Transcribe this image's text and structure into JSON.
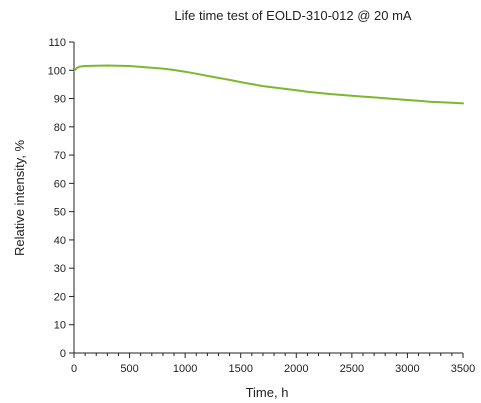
{
  "chart_data": {
    "type": "line",
    "title": "Life time test of EOLD-310-012 @ 20 mA",
    "xlabel": "Time, h",
    "ylabel": "Relative intensity, %",
    "xlim": [
      0,
      3500
    ],
    "ylim": [
      0,
      110
    ],
    "x_ticks": [
      0,
      500,
      1000,
      1500,
      2000,
      2500,
      3000,
      3500
    ],
    "y_ticks": [
      0,
      10,
      20,
      30,
      40,
      50,
      60,
      70,
      80,
      90,
      100,
      110
    ],
    "grid": false,
    "legend": "none",
    "series": [
      {
        "color": "#7cb82f",
        "x": [
          0,
          25,
          50,
          100,
          200,
          300,
          400,
          500,
          600,
          700,
          800,
          900,
          1000,
          1100,
          1200,
          1300,
          1400,
          1500,
          1600,
          1700,
          1800,
          1900,
          2000,
          2100,
          2200,
          2300,
          2400,
          2500,
          2600,
          2700,
          2800,
          2900,
          3000,
          3100,
          3200,
          3300,
          3400,
          3500
        ],
        "y": [
          99.8,
          100.8,
          101.3,
          101.5,
          101.6,
          101.7,
          101.6,
          101.5,
          101.2,
          100.9,
          100.6,
          100.1,
          99.5,
          98.8,
          98.0,
          97.3,
          96.6,
          95.8,
          95.1,
          94.4,
          93.9,
          93.4,
          92.9,
          92.4,
          92.0,
          91.6,
          91.3,
          91.0,
          90.7,
          90.4,
          90.1,
          89.8,
          89.5,
          89.2,
          88.9,
          88.7,
          88.5,
          88.3
        ]
      }
    ]
  }
}
